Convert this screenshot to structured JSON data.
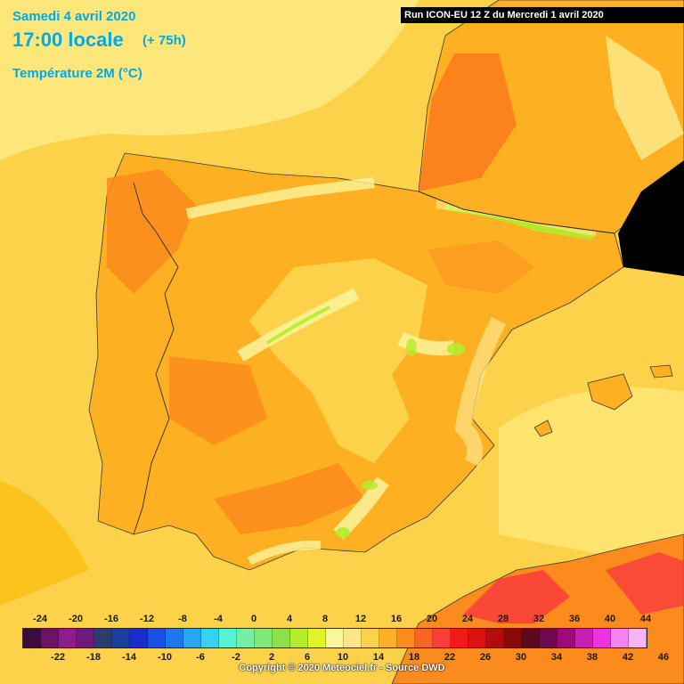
{
  "header": {
    "date": "Samedi 4 avril 2020",
    "time": "17:00 locale",
    "lead": "(+ 75h)",
    "parameter": "Température 2M (°C)"
  },
  "run_banner": "Run ICON-EU 12 Z du Mercredi 1 avril 2020",
  "legend": {
    "top_labels": [
      "-24",
      "-20",
      "-16",
      "-12",
      "-8",
      "-4",
      "0",
      "4",
      "8",
      "12",
      "16",
      "20",
      "24",
      "28",
      "32",
      "36",
      "40",
      "44"
    ],
    "bottom_labels": [
      "-22",
      "-18",
      "-14",
      "-10",
      "-6",
      "-2",
      "2",
      "6",
      "10",
      "14",
      "18",
      "22",
      "26",
      "30",
      "34",
      "38",
      "42",
      "46"
    ],
    "colors": [
      "#3d0b3e",
      "#6a1466",
      "#8e1c8c",
      "#6e1a7a",
      "#2f3a6e",
      "#1a3f9e",
      "#1c2ccc",
      "#1b4fe6",
      "#1b78ef",
      "#29a6f2",
      "#35d2f4",
      "#58f2d4",
      "#72f0a8",
      "#7ee87a",
      "#8ee04a",
      "#b2ec2a",
      "#e2f426",
      "#fbf59c",
      "#fde68a",
      "#fbd24a",
      "#fdb022",
      "#fb8b1c",
      "#f86424",
      "#f8403a",
      "#f01a1a",
      "#d81414",
      "#b40c0c",
      "#880a0a",
      "#5a0a18",
      "#700a4e",
      "#9e0a7a",
      "#c81eb4",
      "#ec32e2",
      "#f284f2",
      "#f6b4f2"
    ]
  },
  "copyright": "Copyright © 2020 Meteociel.fr - Source DWD"
}
